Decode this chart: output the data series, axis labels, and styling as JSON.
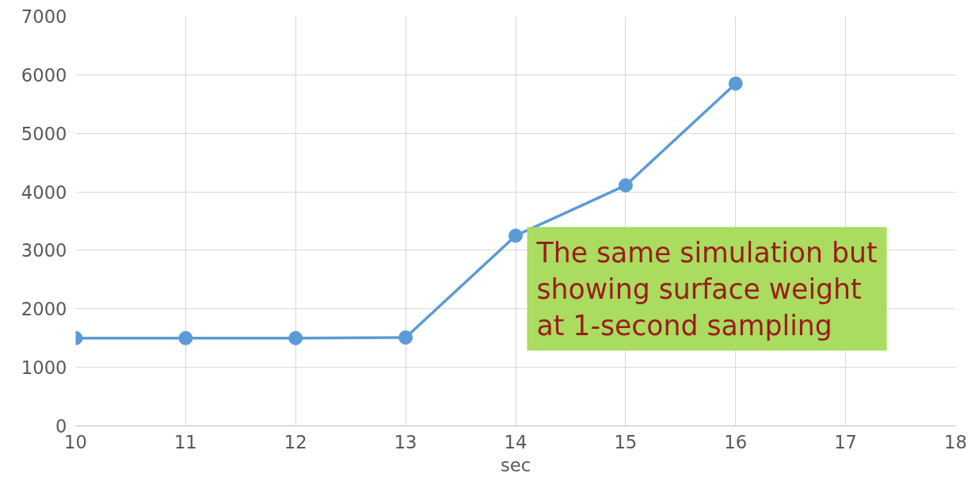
{
  "chart_data": {
    "type": "line",
    "xlabel": "sec",
    "x": [
      10,
      11,
      12,
      13,
      14,
      15,
      16
    ],
    "series": [
      {
        "color": "#5b9bd5",
        "values": [
          1500,
          1500,
          1500,
          1510,
          3250,
          4110,
          5850
        ]
      }
    ],
    "xlim": [
      10,
      18
    ],
    "xticks": [
      10,
      11,
      12,
      13,
      14,
      15,
      16,
      17,
      18
    ],
    "ylim": [
      0,
      7000
    ],
    "yticks": [
      0,
      1000,
      2000,
      3000,
      4000,
      5000,
      6000,
      7000
    ],
    "grid": true,
    "marker": "circle",
    "line_style": "solid",
    "annotations": [
      "The same simulation but\nshowing surface weight\nat 1-second sampling"
    ]
  }
}
